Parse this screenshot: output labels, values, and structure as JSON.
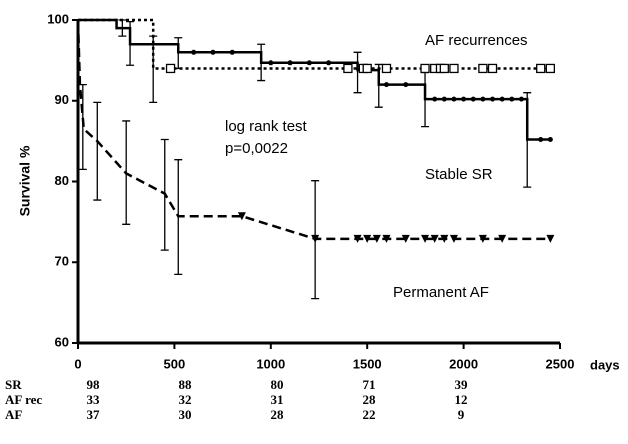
{
  "chart_data": {
    "type": "survival",
    "y_label": "Survival %",
    "x_label": "days",
    "xlim": [
      0,
      2500
    ],
    "ylim": [
      60,
      100
    ],
    "xticks": [
      0,
      500,
      1000,
      1500,
      2000,
      2500
    ],
    "yticks": [
      60,
      70,
      80,
      90,
      100
    ],
    "annotations": [
      "log rank test",
      "p=0,0022"
    ],
    "series": [
      {
        "name": "Stable SR",
        "color": "#000000",
        "style": "solid",
        "step": true,
        "marker": "dot",
        "x": [
          0,
          200,
          270,
          520,
          950,
          1450,
          1560,
          1800,
          2330,
          2450
        ],
        "values": [
          100,
          99,
          97,
          96,
          94.7,
          93.8,
          92,
          90.2,
          85.2,
          85.2
        ],
        "censored": [
          600,
          700,
          800,
          1000,
          1100,
          1200,
          1300,
          1600,
          1700,
          1850,
          1900,
          1950,
          2000,
          2050,
          2100,
          2150,
          2200,
          2250,
          2300,
          2400,
          2450
        ],
        "error_bars": [
          {
            "x": 230,
            "low": 98,
            "high": 100
          },
          {
            "x": 270,
            "low": 94.4,
            "high": 99.8
          },
          {
            "x": 520,
            "low": 94,
            "high": 97.8
          },
          {
            "x": 950,
            "low": 92.5,
            "high": 97
          },
          {
            "x": 1450,
            "low": 91,
            "high": 96
          },
          {
            "x": 1560,
            "low": 89.2,
            "high": 94.5
          },
          {
            "x": 1800,
            "low": 86.8,
            "high": 93.5
          },
          {
            "x": 2330,
            "low": 79.3,
            "high": 91
          }
        ]
      },
      {
        "name": "AF recurrences",
        "color": "#000000",
        "style": "dotted",
        "step": true,
        "marker": "square",
        "x": [
          0,
          390,
          2450
        ],
        "values": [
          100,
          94,
          94
        ],
        "censored": [
          480,
          1400,
          1480,
          1500,
          1600,
          1800,
          1850,
          1880,
          1900,
          1950,
          2100,
          2150,
          2400,
          2450
        ],
        "error_bars": [
          {
            "x": 390,
            "low": 89.8,
            "high": 98
          }
        ]
      },
      {
        "name": "Permanent AF",
        "color": "#000000",
        "style": "dashed",
        "step": false,
        "marker": "triangle",
        "x": [
          0,
          10,
          30,
          100,
          250,
          450,
          520,
          850,
          1230,
          2450
        ],
        "values": [
          100,
          92,
          86.5,
          85,
          81,
          78.5,
          75.7,
          75.7,
          72.9,
          72.9
        ],
        "censored": [
          850,
          1230,
          1450,
          1500,
          1550,
          1600,
          1700,
          1800,
          1850,
          1900,
          1950,
          2100,
          2200,
          2450
        ],
        "error_bars": [
          {
            "x": 25,
            "low": 81.5,
            "high": 92
          },
          {
            "x": 100,
            "low": 77.7,
            "high": 89.8
          },
          {
            "x": 250,
            "low": 74.7,
            "high": 87.5
          },
          {
            "x": 450,
            "low": 71.5,
            "high": 85.2
          },
          {
            "x": 520,
            "low": 68.5,
            "high": 82.7
          },
          {
            "x": 1230,
            "low": 65.5,
            "high": 80.1
          }
        ]
      }
    ],
    "risk_table": [
      {
        "label": "SR",
        "values": [
          98,
          88,
          80,
          71,
          39
        ]
      },
      {
        "label": "AF rec",
        "values": [
          33,
          32,
          31,
          28,
          12
        ]
      },
      {
        "label": "AF",
        "values": [
          37,
          30,
          28,
          22,
          9
        ]
      }
    ]
  }
}
